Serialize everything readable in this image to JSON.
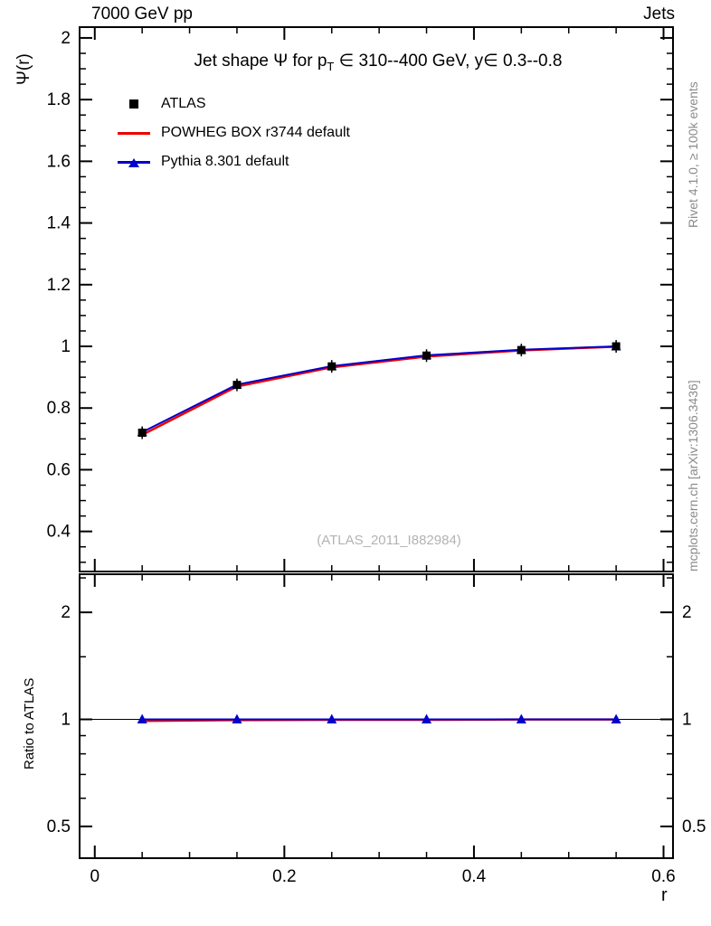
{
  "header": {
    "left": "7000 GeV pp",
    "right": "Jets"
  },
  "side_notes": {
    "top": "Rivet 4.1.0, ≥ 100k events",
    "bottom": "mcplots.cern.ch [arXiv:1306.3436]"
  },
  "watermark": "(ATLAS_2011_I882984)",
  "chart_data": {
    "type": "line",
    "title": {
      "prefix": "Jet shape Ψ for p",
      "sub": "T",
      "suffix": " ∈ 310--400 GeV, y∈ 0.3--0.8"
    },
    "xlabel": "r",
    "ylabel": "Ψ(r)",
    "ratio_ylabel": "Ratio to ATLAS",
    "x": [
      0.05,
      0.15,
      0.25,
      0.35,
      0.45,
      0.55
    ],
    "series": [
      {
        "name": "ATLAS",
        "style": "marker",
        "marker": "square",
        "color": "#000000",
        "values": [
          0.72,
          0.875,
          0.935,
          0.97,
          0.988,
          1.0
        ]
      },
      {
        "name": "POWHEG BOX r3744 default",
        "style": "line",
        "color": "#ee0000",
        "values": [
          0.713,
          0.87,
          0.932,
          0.967,
          0.987,
          0.999
        ]
      },
      {
        "name": "Pythia 8.301 default",
        "style": "line-marker",
        "marker": "triangle",
        "color": "#0000cc",
        "values": [
          0.722,
          0.876,
          0.936,
          0.971,
          0.989,
          1.0
        ]
      }
    ],
    "axes": {
      "xlim": [
        -0.016,
        0.61
      ],
      "ylim": [
        0.27,
        2.035
      ],
      "x_major": [
        0,
        0.2,
        0.4,
        0.6
      ],
      "x_minor_step": 0.05,
      "y_major": [
        0.4,
        0.6,
        0.8,
        1.0,
        1.2,
        1.4,
        1.6,
        1.8,
        2.0
      ],
      "y_minor_step": 0.05
    },
    "ratio": {
      "scale": "log",
      "ylim": [
        0.407,
        2.56
      ],
      "y_major": [
        0.5,
        1,
        2
      ],
      "y_minor": [
        0.6,
        0.7,
        0.8,
        0.9,
        1.5,
        2.5
      ],
      "reference": 1,
      "series": [
        {
          "name": "POWHEG BOX r3744 default",
          "style": "line",
          "color": "#ee0000",
          "values": [
            0.99,
            0.995,
            0.997,
            0.997,
            0.999,
            0.999
          ]
        },
        {
          "name": "Pythia 8.301 default",
          "style": "line-marker",
          "marker": "triangle",
          "color": "#0000cc",
          "values": [
            1.0,
            1.0,
            1.0,
            1.0,
            1.0,
            1.0
          ]
        }
      ]
    }
  }
}
